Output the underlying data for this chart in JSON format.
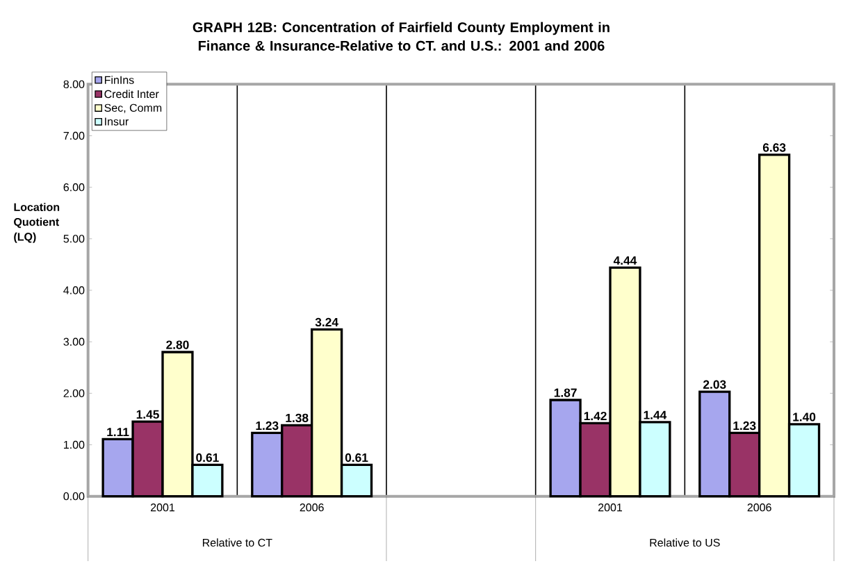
{
  "chart_data": {
    "type": "bar",
    "title": "GRAPH 12B: Concentration of Fairfield County Employment in Finance & Insurance-Relative to CT. and  U.S.: 2001 and 2006",
    "ylabel": "Location Quotient (LQ)",
    "categories": [
      "2001",
      "2006",
      null,
      "2001",
      "2006"
    ],
    "annotations": [
      "Relative to CT",
      "Relative to US"
    ],
    "series": [
      {
        "name": "FinIns",
        "color": "#a6a6ee",
        "values": [
          1.11,
          1.23,
          null,
          1.87,
          2.03
        ],
        "value_labels": [
          "1.11",
          "1.23",
          null,
          "1.87",
          "2.03"
        ]
      },
      {
        "name": "Credit Inter",
        "color": "#993366",
        "values": [
          1.45,
          1.38,
          null,
          1.42,
          1.23
        ],
        "value_labels": [
          "1.45",
          "1.38",
          null,
          "1.42",
          "1.23"
        ]
      },
      {
        "name": "Sec, Comm",
        "color": "#ffffcc",
        "values": [
          2.8,
          3.24,
          null,
          4.44,
          6.63
        ],
        "value_labels": [
          "2.80",
          "3.24",
          null,
          "4.44",
          "6.63"
        ]
      },
      {
        "name": "Insur",
        "color": "#ccffff",
        "values": [
          0.61,
          0.61,
          null,
          1.44,
          1.4
        ],
        "value_labels": [
          "0.61",
          "0.61",
          null,
          "1.44",
          "1.40"
        ]
      }
    ],
    "ylim": [
      0,
      8
    ],
    "yticks": [
      {
        "value": 0,
        "label": "0.00"
      },
      {
        "value": 1,
        "label": "1.00"
      },
      {
        "value": 2,
        "label": "2.00"
      },
      {
        "value": 3,
        "label": "3.00"
      },
      {
        "value": 4,
        "label": "4.00"
      },
      {
        "value": 5,
        "label": "5.00"
      },
      {
        "value": 6,
        "label": "6.00"
      },
      {
        "value": 7,
        "label": "7.00"
      },
      {
        "value": 8,
        "label": "8.00"
      }
    ],
    "grid": "x",
    "legend": "top left"
  }
}
